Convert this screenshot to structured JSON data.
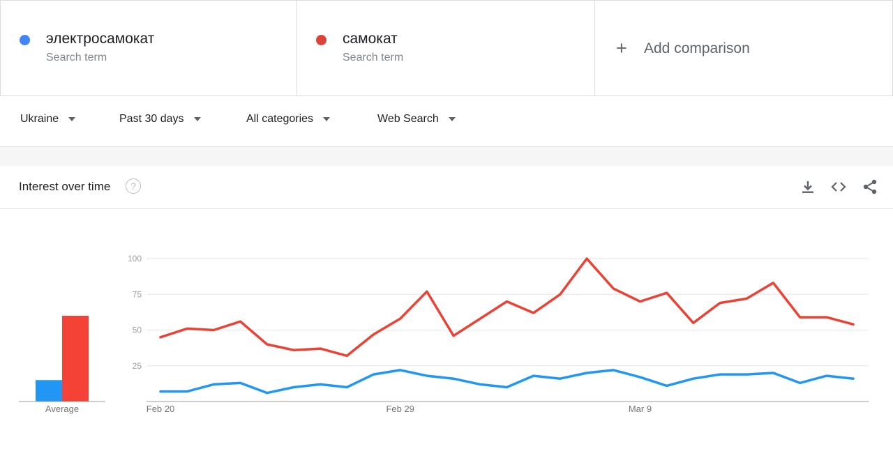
{
  "comparison": {
    "terms": [
      {
        "label": "электросамокат",
        "sublabel": "Search term",
        "color": "#4285f4"
      },
      {
        "label": "самокат",
        "sublabel": "Search term",
        "color": "#db4437"
      }
    ],
    "add_label": "Add comparison",
    "add_icon": "plus-icon"
  },
  "filters": {
    "region": "Ukraine",
    "time": "Past 30 days",
    "category": "All categories",
    "search_type": "Web Search"
  },
  "panel": {
    "title": "Interest over time",
    "icons": [
      "help-icon",
      "download-icon",
      "embed-icon",
      "share-icon"
    ]
  },
  "chart_data": {
    "type": "line",
    "x_tick_labels": [
      "Feb 20",
      "Feb 29",
      "Mar 9"
    ],
    "y_ticks": [
      25,
      50,
      75,
      100
    ],
    "ylim": [
      0,
      100
    ],
    "grid": true,
    "series": [
      {
        "name": "электросамокат",
        "color": "#2196f3",
        "values": [
          7,
          7,
          12,
          13,
          6,
          10,
          12,
          10,
          19,
          22,
          18,
          16,
          12,
          10,
          18,
          16,
          20,
          22,
          17,
          11,
          16,
          19,
          19,
          20,
          13,
          18,
          16
        ]
      },
      {
        "name": "самокат",
        "color": "#ea4335",
        "values": [
          45,
          51,
          50,
          56,
          40,
          36,
          37,
          32,
          47,
          58,
          77,
          46,
          58,
          70,
          62,
          75,
          100,
          79,
          70,
          76,
          55,
          69,
          72,
          83,
          59,
          59,
          54
        ]
      }
    ],
    "average": {
      "label": "Average",
      "values": [
        15,
        60
      ],
      "colors": [
        "#2196f3",
        "#f44336"
      ]
    }
  }
}
